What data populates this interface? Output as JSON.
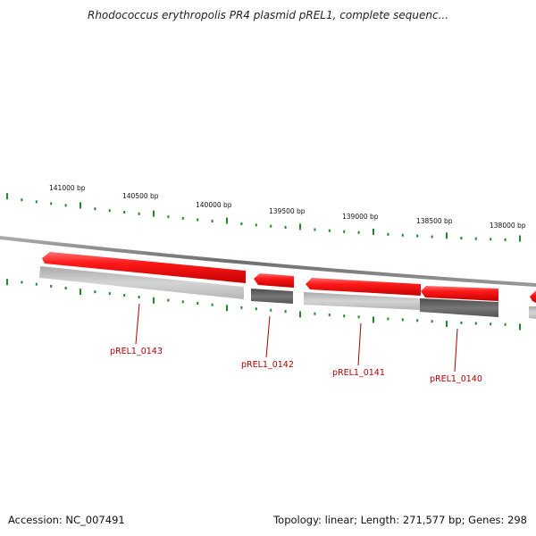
{
  "title": "Rhodococcus erythropolis PR4 plasmid pREL1, complete sequenc...",
  "scale": {
    "labels": [
      "141000 bp",
      "140500 bp",
      "140000 bp",
      "139500 bp",
      "139000 bp",
      "138500 bp",
      "138000 bp"
    ]
  },
  "genes": [
    {
      "label": "pREL1_0143"
    },
    {
      "label": "pREL1_0142"
    },
    {
      "label": "pREL1_0141"
    },
    {
      "label": "pREL1_0140"
    }
  ],
  "colors": {
    "gene_forward": "#e8141a",
    "gene_dark": "#6a6a6a",
    "gene_light": "#c4c4c4",
    "backbone": "#8a8a8a",
    "ticks": "#1f8a1f",
    "label": "#b00000"
  },
  "footer": {
    "accession": "Accession: NC_007491",
    "summary": "Topology: linear; Length: 271,577 bp; Genes: 298"
  }
}
